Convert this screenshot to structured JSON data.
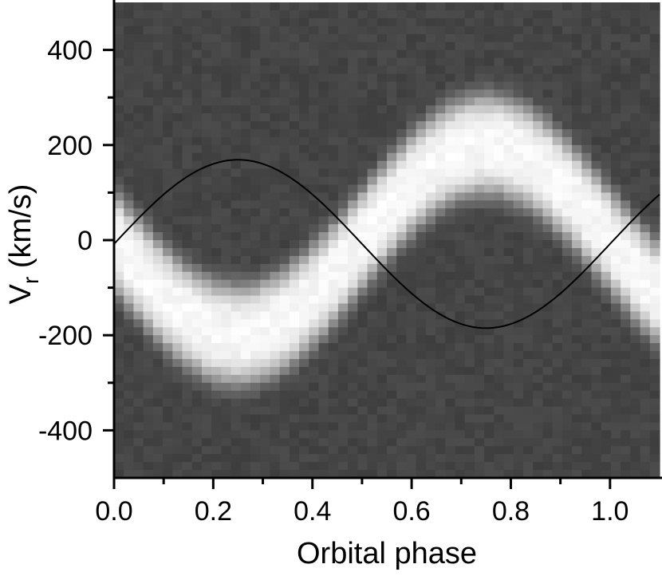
{
  "chart_data": {
    "type": "heatmap",
    "title": "",
    "xlabel": "Orbital phase",
    "ylabel_main": "V",
    "ylabel_sub": "r",
    "ylabel_unit": " (km/s)",
    "xlim": [
      0.0,
      1.1
    ],
    "ylim": [
      -500,
      500
    ],
    "x_ticks": [
      {
        "value": 0.0,
        "label": "0.0"
      },
      {
        "value": 0.2,
        "label": "0.2"
      },
      {
        "value": 0.4,
        "label": "0.4"
      },
      {
        "value": 0.6,
        "label": "0.6"
      },
      {
        "value": 0.8,
        "label": "0.8"
      },
      {
        "value": 1.0,
        "label": "1.0"
      }
    ],
    "x_minor_ticks": [
      0.1,
      0.3,
      0.5,
      0.7,
      0.9
    ],
    "y_ticks": [
      {
        "value": 400,
        "label": "400"
      },
      {
        "value": 200,
        "label": "200"
      },
      {
        "value": 0,
        "label": "0"
      },
      {
        "value": -200,
        "label": "-200"
      },
      {
        "value": -400,
        "label": "-400"
      }
    ],
    "y_minor_ticks": [
      300,
      100,
      -100,
      -300
    ],
    "grid": false,
    "colormap": "grayscale",
    "background_intensity": 0.27,
    "emission_band": {
      "gamma": 0,
      "semi_amplitude": 200,
      "phase_of_max": 0.75,
      "half_width": 80,
      "peak_intensity": 0.97
    },
    "curve": {
      "type": "sinusoid",
      "gamma": -8,
      "semi_amplitude": 177,
      "phase_of_max": 0.25,
      "color": "#000000"
    }
  }
}
